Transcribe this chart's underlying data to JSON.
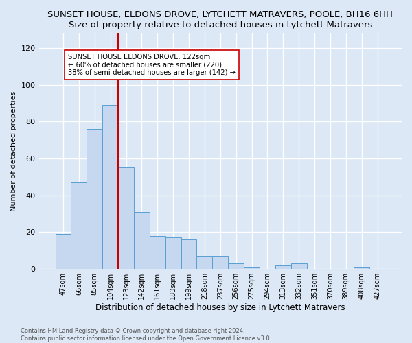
{
  "title": "SUNSET HOUSE, ELDONS DROVE, LYTCHETT MATRAVERS, POOLE, BH16 6HH",
  "subtitle": "Size of property relative to detached houses in Lytchett Matravers",
  "xlabel": "Distribution of detached houses by size in Lytchett Matravers",
  "ylabel": "Number of detached properties",
  "footnote1": "Contains HM Land Registry data © Crown copyright and database right 2024.",
  "footnote2": "Contains public sector information licensed under the Open Government Licence v3.0.",
  "bar_labels": [
    "47sqm",
    "66sqm",
    "85sqm",
    "104sqm",
    "123sqm",
    "142sqm",
    "161sqm",
    "180sqm",
    "199sqm",
    "218sqm",
    "237sqm",
    "256sqm",
    "275sqm",
    "294sqm",
    "313sqm",
    "332sqm",
    "351sqm",
    "370sqm",
    "389sqm",
    "408sqm",
    "427sqm"
  ],
  "bar_values": [
    19,
    47,
    76,
    89,
    55,
    31,
    18,
    17,
    16,
    7,
    7,
    3,
    1,
    0,
    2,
    3,
    0,
    0,
    0,
    1,
    0
  ],
  "bar_color": "#c5d8f0",
  "bar_edge_color": "#5a9fd4",
  "vline_x": 4,
  "vline_color": "#cc0000",
  "annotation_text": "SUNSET HOUSE ELDONS DROVE: 122sqm\n← 60% of detached houses are smaller (220)\n38% of semi-detached houses are larger (142) →",
  "ylim": [
    0,
    128
  ],
  "yticks": [
    0,
    20,
    40,
    60,
    80,
    100,
    120
  ],
  "bg_color": "#dce8f5",
  "grid_color": "#ffffff",
  "title_fontsize": 9.5,
  "subtitle_fontsize": 9
}
